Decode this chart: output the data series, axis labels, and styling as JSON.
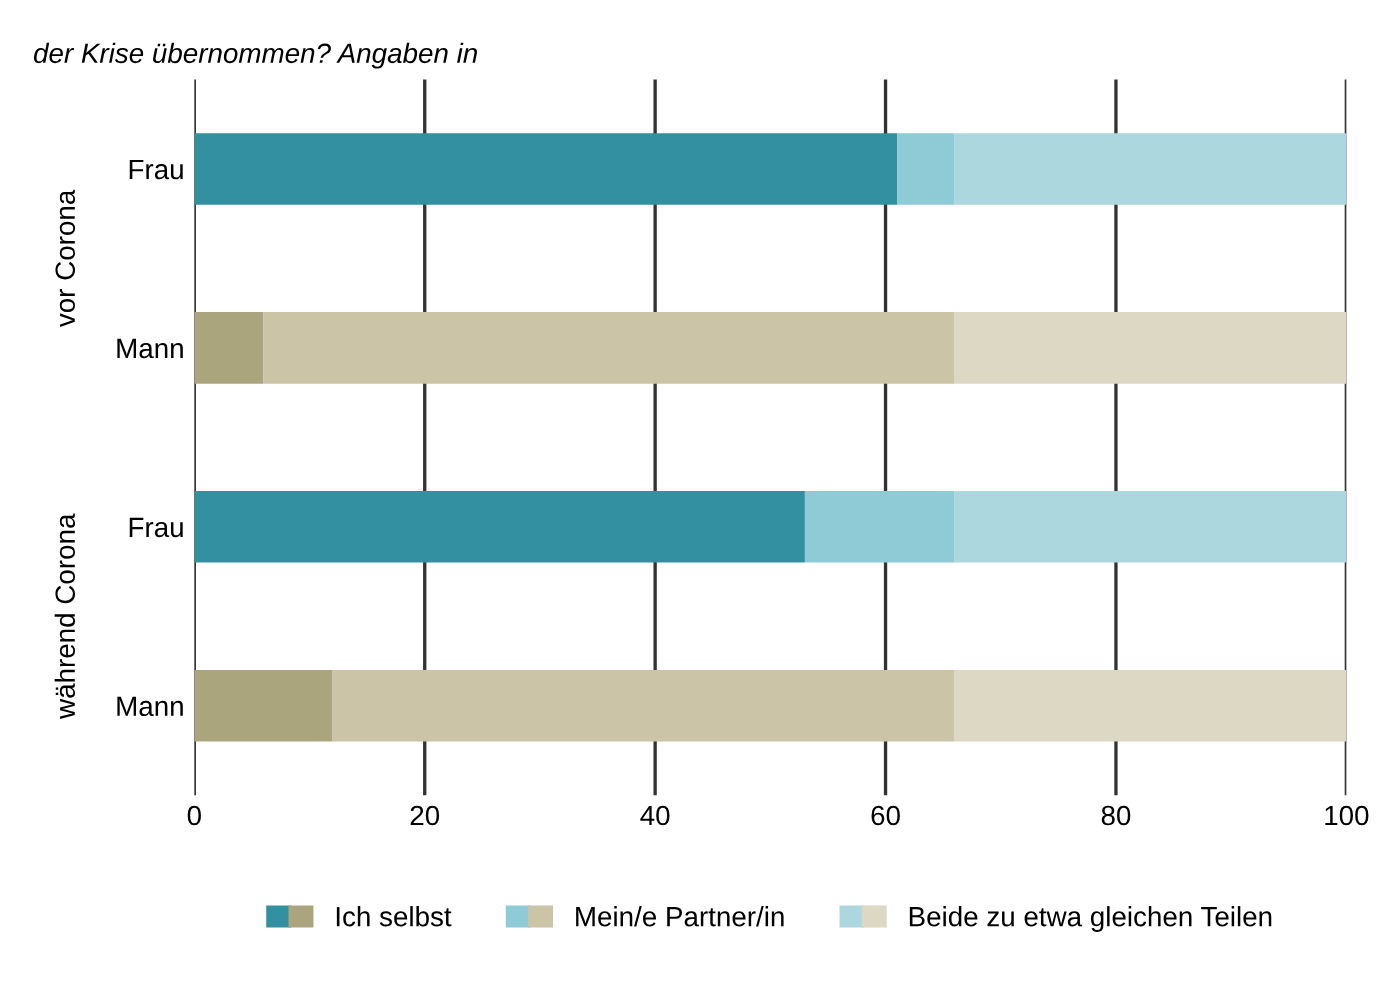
{
  "chart_data": {
    "type": "bar",
    "orientation": "horizontal",
    "stacked": true,
    "title": "der Krise übernommen? Angaben in",
    "categories": [
      "Frau",
      "Mann",
      "Frau",
      "Mann"
    ],
    "series": [
      {
        "name": "Ich selbst",
        "colors": [
          "#3390a0",
          "#aba57e",
          "#3390a0",
          "#aba57e"
        ],
        "values": [
          61,
          6,
          53,
          12
        ]
      },
      {
        "name": "Mein/e Partner/in",
        "colors": [
          "#8ecbd6",
          "#cbc4a6",
          "#8ecbd6",
          "#cbc4a6"
        ],
        "values": [
          5,
          60,
          13,
          54
        ]
      },
      {
        "name": "Beide zu etwa gleichen Teilen",
        "colors": [
          "#acd7df",
          "#dcd8c4",
          "#acd7df",
          "#dcd8c4"
        ],
        "values": [
          34,
          34,
          34,
          34
        ]
      }
    ],
    "annotations": [
      "vor Corona",
      "während Corona"
    ],
    "xlim": [
      0,
      100
    ],
    "xticks": [
      0,
      20,
      40,
      60,
      80,
      100
    ],
    "grid": "x",
    "legend": "bottom"
  }
}
